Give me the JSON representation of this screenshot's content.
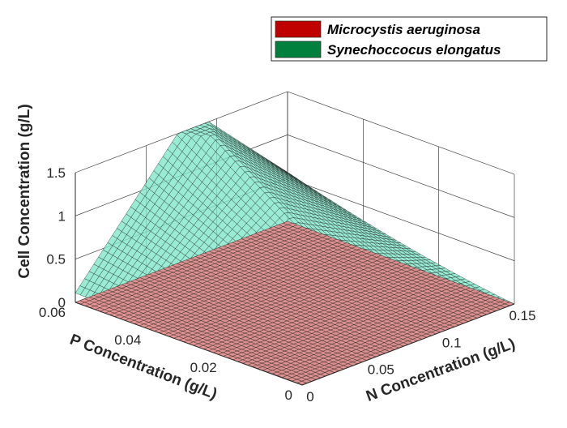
{
  "chart_data": {
    "type": "surface3d",
    "title": "",
    "xlabel": "N Concentration (g/L)",
    "ylabel": "P Concentration (g/L)",
    "zlabel": "Cell Concentration (g/L)",
    "xlim": [
      0,
      0.15
    ],
    "ylim": [
      0,
      0.06
    ],
    "zlim": [
      0,
      1.5
    ],
    "xticks": [
      "0",
      "0.05",
      "0.1",
      "0.15"
    ],
    "yticks": [
      "0",
      "0.02",
      "0.04",
      "0.06"
    ],
    "zticks": [
      "0",
      "0.5",
      "1",
      "1.5"
    ],
    "grid": true,
    "legend_position": "top-right",
    "series": [
      {
        "name": "Microcystis aeruginosa",
        "color": "#c00000",
        "surface_color": "#e48a8a",
        "peak_z": 0.03,
        "x_break": 0.035,
        "y_break": 0.01,
        "note_shape": "rises only near origin"
      },
      {
        "name": "Synechoccocus elongatus",
        "color": "#00803c",
        "surface_color": "#7fe6c8",
        "peak_z": 1.5,
        "z_at_x0_y_max": 0.0,
        "z_at_x_max_y0": 0.0,
        "z_at_x_max_y_max": 1.0,
        "z_at_x0_y0": 0.0
      }
    ]
  }
}
